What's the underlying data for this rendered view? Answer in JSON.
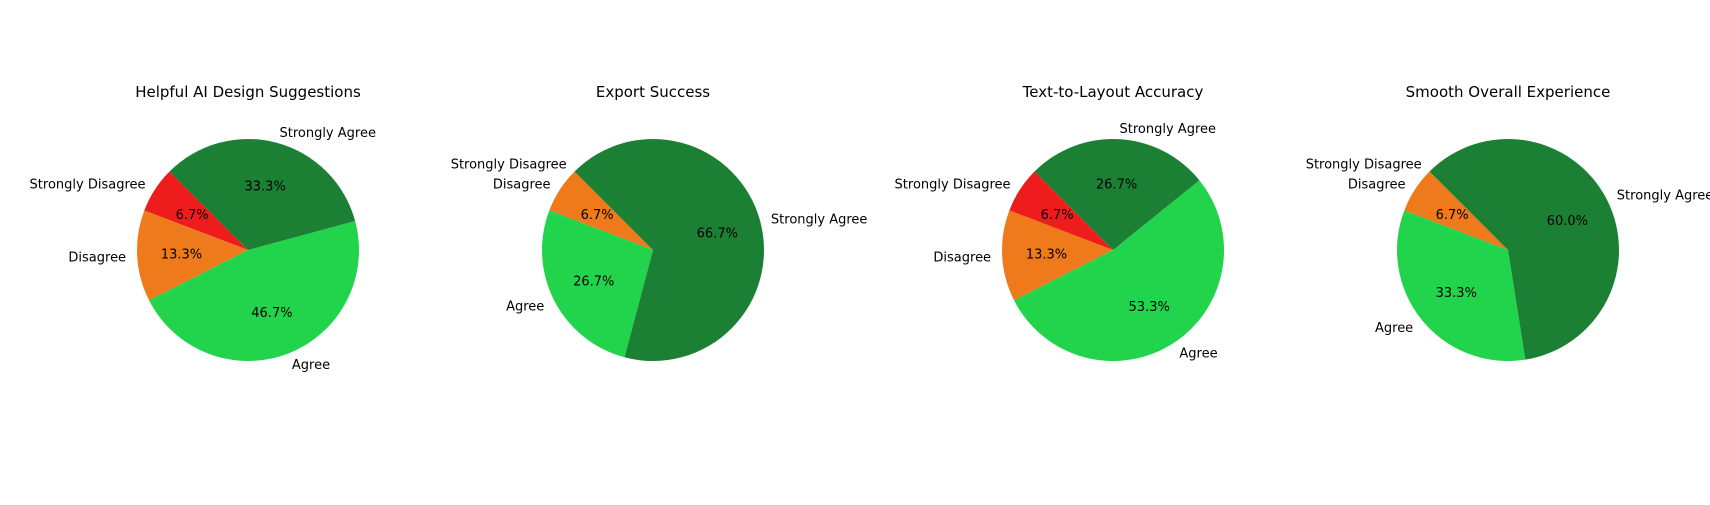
{
  "colors": {
    "Strongly Disagree": "#ee1c1c",
    "Disagree": "#ee7a1c",
    "Agree": "#22d44b",
    "Strongly Agree": "#1b8034"
  },
  "chart_data": [
    {
      "type": "pie",
      "title": "Helpful AI Design Suggestions",
      "labels": [
        "Strongly Disagree",
        "Disagree",
        "Agree",
        "Strongly Agree"
      ],
      "values": [
        6.7,
        13.3,
        46.7,
        33.3
      ],
      "value_labels": [
        "6.7%",
        "13.3%",
        "46.7%",
        "33.3%"
      ]
    },
    {
      "type": "pie",
      "title": "Export Success",
      "labels": [
        "Strongly Disagree",
        "Disagree",
        "Agree",
        "Strongly Agree"
      ],
      "values": [
        0,
        6.7,
        26.7,
        66.7
      ],
      "value_labels": [
        "",
        "6.7%",
        "26.7%",
        "66.7%"
      ]
    },
    {
      "type": "pie",
      "title": "Text-to-Layout Accuracy",
      "labels": [
        "Strongly Disagree",
        "Disagree",
        "Agree",
        "Strongly Agree"
      ],
      "values": [
        6.7,
        13.3,
        53.3,
        26.7
      ],
      "value_labels": [
        "6.7%",
        "13.3%",
        "53.3%",
        "26.7%"
      ]
    },
    {
      "type": "pie",
      "title": "Smooth Overall Experience",
      "labels": [
        "Strongly Disagree",
        "Disagree",
        "Agree",
        "Strongly Agree"
      ],
      "values": [
        0,
        6.7,
        33.3,
        60.0
      ],
      "value_labels": [
        "",
        "6.7%",
        "33.3%",
        "60.0%"
      ]
    }
  ]
}
